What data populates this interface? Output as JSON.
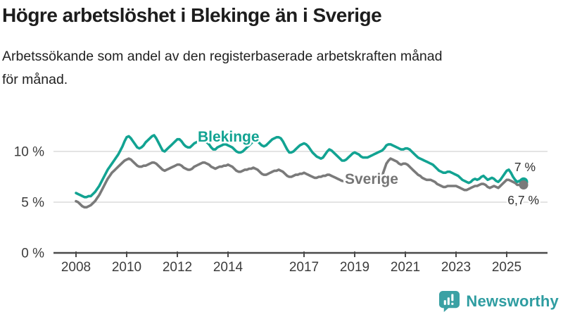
{
  "header": {
    "title": "Högre arbetslöshet i Blekinge än i Sverige",
    "subtitle_lines": [
      "Arbetssökande som andel av den registerbaserade arbetskraften månad",
      "för månad."
    ]
  },
  "chart_data": {
    "type": "line",
    "title": "Högre arbetslöshet i Blekinge än i Sverige",
    "subtitle": "Arbetssökande som andel av den registerbaserade arbetskraften månad för månad.",
    "frequency": "monthly",
    "x_start": "2008-01",
    "x_end": "2025-09",
    "grid": "horizontal",
    "legend_position": "inline-labels",
    "x_axis": {
      "ticks": [
        {
          "year": 2008,
          "label": "2008"
        },
        {
          "year": 2010,
          "label": "2010"
        },
        {
          "year": 2012,
          "label": "2012"
        },
        {
          "year": 2014,
          "label": "2014"
        },
        {
          "year": 2017,
          "label": "2017"
        },
        {
          "year": 2019,
          "label": "2019"
        },
        {
          "year": 2021,
          "label": "2021"
        },
        {
          "year": 2023,
          "label": "2023"
        },
        {
          "year": 2025,
          "label": "2025"
        }
      ]
    },
    "y_axis": {
      "unit": "%",
      "range": [
        0,
        13
      ],
      "ticks": [
        {
          "value": 0,
          "label": "0 %"
        },
        {
          "value": 5,
          "label": "5 %"
        },
        {
          "value": 10,
          "label": "10 %"
        }
      ]
    },
    "series": [
      {
        "name": "Blekinge",
        "color": "#12a392",
        "end_label": "7 %",
        "end_value": 7.0,
        "values": [
          5.9,
          5.8,
          5.7,
          5.6,
          5.5,
          5.5,
          5.6,
          5.6,
          5.8,
          6.0,
          6.3,
          6.6,
          7.0,
          7.4,
          7.8,
          8.2,
          8.5,
          8.8,
          9.1,
          9.4,
          9.7,
          10.1,
          10.5,
          11.0,
          11.4,
          11.5,
          11.3,
          11.0,
          10.7,
          10.4,
          10.3,
          10.4,
          10.6,
          10.9,
          11.1,
          11.3,
          11.5,
          11.6,
          11.3,
          10.9,
          10.5,
          10.1,
          10.0,
          10.2,
          10.4,
          10.6,
          10.8,
          11.0,
          11.2,
          11.2,
          11.0,
          10.7,
          10.5,
          10.4,
          10.4,
          10.6,
          10.8,
          10.9,
          11.0,
          11.1,
          11.1,
          11.0,
          10.9,
          10.7,
          10.4,
          10.2,
          10.2,
          10.4,
          10.5,
          10.6,
          10.7,
          10.7,
          10.6,
          10.5,
          10.4,
          10.2,
          10.0,
          9.9,
          9.9,
          10.0,
          10.2,
          10.4,
          10.6,
          10.8,
          11.0,
          11.1,
          11.0,
          10.8,
          10.6,
          10.5,
          10.6,
          10.8,
          11.0,
          11.2,
          11.3,
          11.4,
          11.4,
          11.3,
          11.0,
          10.6,
          10.2,
          9.9,
          9.9,
          10.0,
          10.2,
          10.4,
          10.6,
          10.7,
          10.8,
          10.7,
          10.5,
          10.2,
          9.9,
          9.7,
          9.5,
          9.4,
          9.3,
          9.4,
          9.7,
          10.0,
          10.2,
          10.1,
          9.9,
          9.7,
          9.5,
          9.3,
          9.1,
          9.1,
          9.2,
          9.4,
          9.6,
          9.8,
          9.9,
          9.8,
          9.7,
          9.5,
          9.4,
          9.4,
          9.4,
          9.5,
          9.6,
          9.7,
          9.8,
          9.9,
          10.0,
          10.1,
          10.3,
          10.6,
          10.7,
          10.7,
          10.6,
          10.5,
          10.4,
          10.3,
          10.2,
          10.2,
          10.3,
          10.3,
          10.2,
          10.0,
          9.8,
          9.6,
          9.4,
          9.3,
          9.2,
          9.1,
          9.0,
          8.9,
          8.8,
          8.7,
          8.5,
          8.3,
          8.1,
          8.0,
          7.9,
          7.9,
          8.0,
          8.0,
          7.9,
          7.8,
          7.7,
          7.6,
          7.4,
          7.2,
          7.1,
          7.0,
          6.9,
          7.0,
          7.2,
          7.3,
          7.2,
          7.3,
          7.5,
          7.6,
          7.4,
          7.2,
          7.3,
          7.4,
          7.3,
          7.1,
          7.0,
          7.2,
          7.5,
          7.8,
          8.1,
          8.2,
          7.9,
          7.5,
          7.2,
          7.0,
          7.1,
          7.2,
          7.0
        ]
      },
      {
        "name": "Sverige",
        "color": "#7a7a7a",
        "end_label": "6,7 %",
        "end_value": 6.7,
        "values": [
          5.1,
          5.0,
          4.8,
          4.6,
          4.5,
          4.5,
          4.6,
          4.7,
          4.9,
          5.1,
          5.4,
          5.7,
          6.1,
          6.5,
          6.9,
          7.3,
          7.6,
          7.9,
          8.1,
          8.3,
          8.5,
          8.7,
          8.9,
          9.1,
          9.2,
          9.3,
          9.2,
          9.0,
          8.8,
          8.6,
          8.5,
          8.5,
          8.6,
          8.6,
          8.7,
          8.8,
          8.9,
          8.9,
          8.8,
          8.6,
          8.4,
          8.2,
          8.1,
          8.2,
          8.3,
          8.4,
          8.5,
          8.6,
          8.7,
          8.7,
          8.6,
          8.4,
          8.3,
          8.2,
          8.2,
          8.3,
          8.5,
          8.6,
          8.7,
          8.8,
          8.9,
          8.9,
          8.8,
          8.7,
          8.5,
          8.4,
          8.3,
          8.4,
          8.5,
          8.5,
          8.6,
          8.6,
          8.7,
          8.6,
          8.5,
          8.3,
          8.1,
          8.0,
          8.0,
          8.1,
          8.2,
          8.2,
          8.3,
          8.3,
          8.4,
          8.3,
          8.2,
          8.0,
          7.8,
          7.7,
          7.7,
          7.8,
          7.9,
          8.0,
          8.1,
          8.1,
          8.2,
          8.1,
          8.0,
          7.8,
          7.6,
          7.5,
          7.5,
          7.6,
          7.7,
          7.7,
          7.8,
          7.8,
          7.9,
          7.8,
          7.7,
          7.6,
          7.5,
          7.4,
          7.4,
          7.5,
          7.5,
          7.6,
          7.6,
          7.7,
          7.7,
          7.6,
          7.5,
          7.4,
          7.3,
          7.2,
          7.1,
          7.1,
          7.2,
          7.2,
          7.3,
          7.3,
          7.4,
          7.4,
          7.3,
          7.2,
          7.1,
          7.0,
          7.0,
          7.1,
          7.1,
          7.2,
          7.3,
          7.4,
          7.4,
          7.6,
          8.2,
          8.8,
          9.1,
          9.3,
          9.2,
          9.1,
          9.0,
          8.8,
          8.7,
          8.8,
          8.8,
          8.7,
          8.5,
          8.3,
          8.1,
          7.9,
          7.7,
          7.6,
          7.4,
          7.3,
          7.2,
          7.2,
          7.2,
          7.1,
          7.0,
          6.8,
          6.7,
          6.6,
          6.5,
          6.5,
          6.6,
          6.6,
          6.6,
          6.6,
          6.6,
          6.5,
          6.4,
          6.3,
          6.2,
          6.2,
          6.3,
          6.4,
          6.5,
          6.6,
          6.6,
          6.7,
          6.8,
          6.8,
          6.7,
          6.5,
          6.4,
          6.5,
          6.6,
          6.5,
          6.4,
          6.6,
          6.8,
          7.0,
          7.2,
          7.2,
          7.1,
          7.0,
          6.9,
          6.7,
          6.7,
          6.8,
          6.7
        ]
      }
    ]
  },
  "logo": {
    "text": "Newsworthy",
    "icon": "newsworthy-bubble-chart-icon",
    "icon_color": "#3ba1a4",
    "text_color": "#2f9da1"
  }
}
